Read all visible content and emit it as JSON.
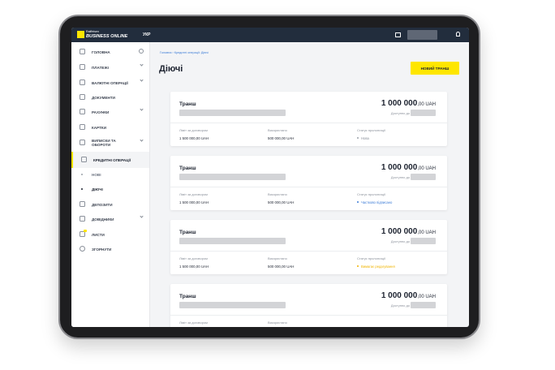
{
  "header": {
    "logo_top": "Raiffeisen",
    "logo_bottom": "BUSINESS ONLINE",
    "language": "УКР"
  },
  "sidebar": {
    "items": [
      "ГОЛОВНА",
      "ПЛАТЕЖІ",
      "ВАЛЮТНІ ОПЕРАЦІЇ",
      "ДОКУМЕНТИ",
      "РАХУНКИ",
      "КАРТКИ",
      "ВИПИСКИ ТА ОБОРОТИ",
      "КРЕДИТНІ ОПЕРАЦІЇ",
      "НОВІ",
      "ДІЮЧІ",
      "ДЕПОЗИТИ",
      "ДОВІДНИКИ",
      "ЛИСТИ",
      "ЗГОРНУТИ"
    ]
  },
  "page": {
    "breadcrumb": "Головна › Кредитні операції: Діючі",
    "title": "Діючі",
    "button": "НОВИЙ ТРАНШ"
  },
  "cards": [
    {
      "name": "Транш",
      "amount": "1 000 000",
      "amount_suffix": ",00 UAH",
      "available": "Доступно до",
      "limit_label": "Ліміт за договором",
      "limit": "1 500 000,00 UAH",
      "used_label": "Використано",
      "used": "500 000,00 UAH",
      "status_label": "Статус пролонгації",
      "status": "Нова"
    },
    {
      "name": "Транш",
      "amount": "1 000 000",
      "amount_suffix": ",00 UAH",
      "available": "Доступно до",
      "limit_label": "Ліміт за договором",
      "limit": "1 500 000,00 UAH",
      "used_label": "Використано",
      "used": "500 000,00 UAH",
      "status_label": "Статус пролонгації",
      "status": "Частково підписано"
    },
    {
      "name": "Транш",
      "amount": "1 000 000",
      "amount_suffix": ",00 UAH",
      "available": "Доступно до",
      "limit_label": "Ліміт за договором",
      "limit": "1 500 000,00 UAH",
      "used_label": "Використано",
      "used": "500 000,00 UAH",
      "status_label": "Статус пролонгації",
      "status": "Вимагає редагування"
    },
    {
      "name": "Транш",
      "amount": "1 000 000",
      "amount_suffix": ",00 UAH",
      "available": "Доступно до",
      "limit_label": "Ліміт за договором",
      "used_label": "Використано"
    }
  ]
}
